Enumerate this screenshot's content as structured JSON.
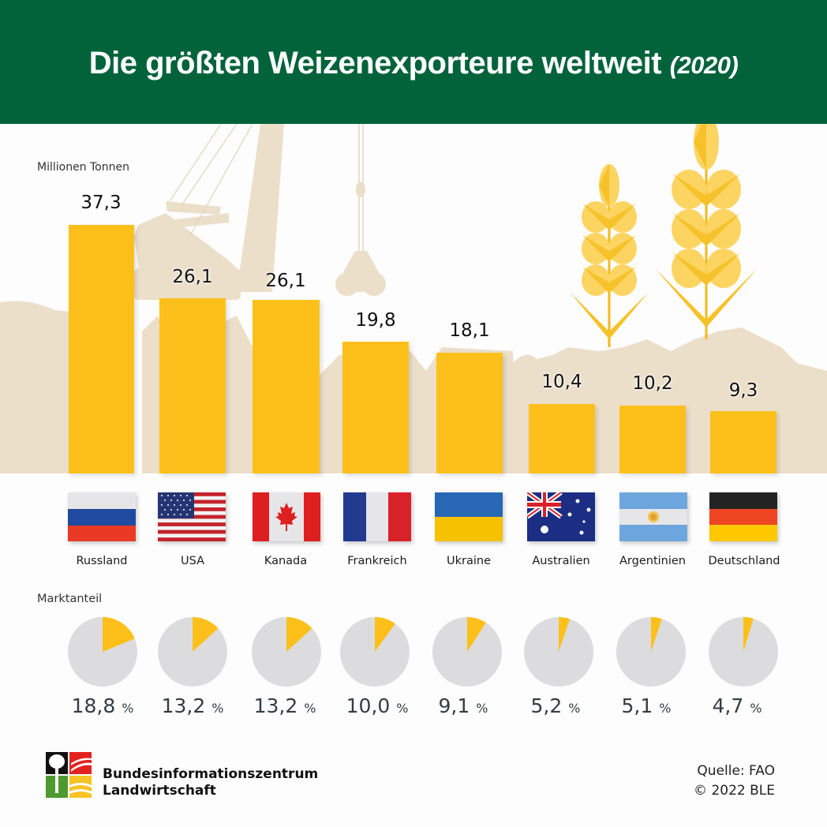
{
  "header": {
    "title": "Die größten Weizenexporteure weltweit",
    "year": "(2020)",
    "bg_color": "#02633a"
  },
  "chart": {
    "unit_label": "Millionen Tonnen",
    "share_label": "Marktanteil",
    "bar_color": "#fdc01a",
    "pie_bg_color": "#dcdcde"
  },
  "countries": [
    {
      "name": "Russland",
      "value": "37,3",
      "share": "18,8",
      "pct": "%"
    },
    {
      "name": "USA",
      "value": "26,1",
      "share": "13,2",
      "pct": "%"
    },
    {
      "name": "Kanada",
      "value": "26,1",
      "share": "13,2",
      "pct": "%"
    },
    {
      "name": "Frankreich",
      "value": "19,8",
      "share": "10,0",
      "pct": "%"
    },
    {
      "name": "Ukraine",
      "value": "18,1",
      "share": "9,1",
      "pct": "%"
    },
    {
      "name": "Australien",
      "value": "10,4",
      "share": "5,2",
      "pct": "%"
    },
    {
      "name": "Argentinien",
      "value": "10,2",
      "share": "5,1",
      "pct": "%"
    },
    {
      "name": "Deutschland",
      "value": "9,3",
      "share": "4,7",
      "pct": "%"
    }
  ],
  "footer": {
    "org_line1": "Bundesinformationszentrum",
    "org_line2": "Landwirtschaft",
    "source": "Quelle: FAO",
    "copyright": "© 2022 BLE"
  },
  "chart_data": [
    {
      "type": "bar",
      "title": "Die größten Weizenexporteure weltweit (2020)",
      "xlabel": "",
      "ylabel": "Millionen Tonnen",
      "categories": [
        "Russland",
        "USA",
        "Kanada",
        "Frankreich",
        "Ukraine",
        "Australien",
        "Argentinien",
        "Deutschland"
      ],
      "values": [
        37.3,
        26.1,
        26.1,
        19.8,
        18.1,
        10.4,
        10.2,
        9.3
      ],
      "data_labels": [
        "37,3",
        "26,1",
        "26,1",
        "19,8",
        "18,1",
        "10,4",
        "10,2",
        "9,3"
      ],
      "grid": false,
      "legend": null
    },
    {
      "type": "pie",
      "title": "Marktanteil",
      "categories": [
        "Russland",
        "USA",
        "Kanada",
        "Frankreich",
        "Ukraine",
        "Australien",
        "Argentinien",
        "Deutschland"
      ],
      "values": [
        18.8,
        13.2,
        13.2,
        10.0,
        9.1,
        5.2,
        5.1,
        4.7
      ],
      "unit": "%",
      "note": "Each country shown as its own pie: share vs. rest of world"
    }
  ]
}
